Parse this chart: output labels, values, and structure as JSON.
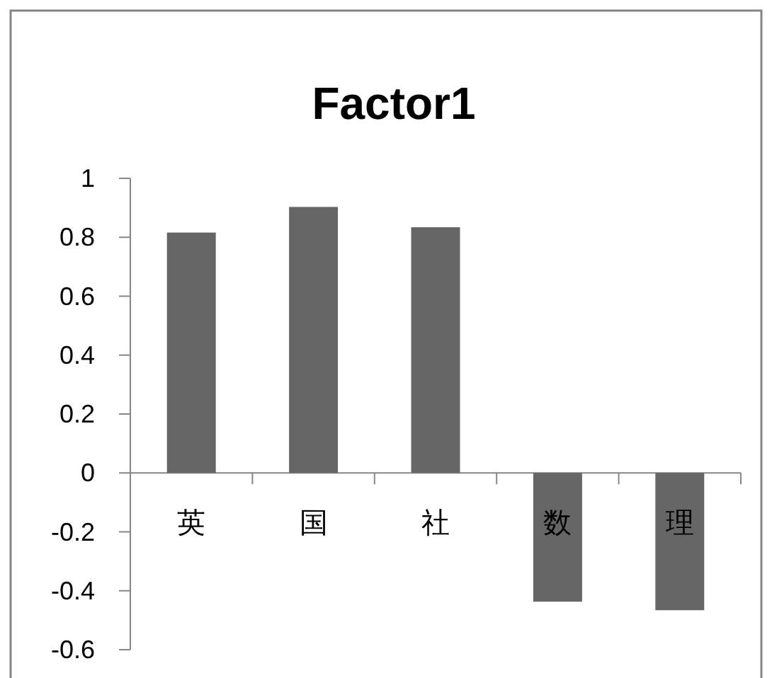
{
  "chart_data": {
    "type": "bar",
    "title": "Factor1",
    "categories": [
      "英",
      "国",
      "社",
      "数",
      "理"
    ],
    "values": [
      0.816,
      0.903,
      0.834,
      -0.437,
      -0.466
    ],
    "color": "#666666",
    "ylim": [
      -0.6,
      1
    ],
    "yticks": [
      -0.6,
      -0.4,
      -0.2,
      0,
      0.2,
      0.4,
      0.6,
      0.8,
      1
    ],
    "grid": false
  }
}
